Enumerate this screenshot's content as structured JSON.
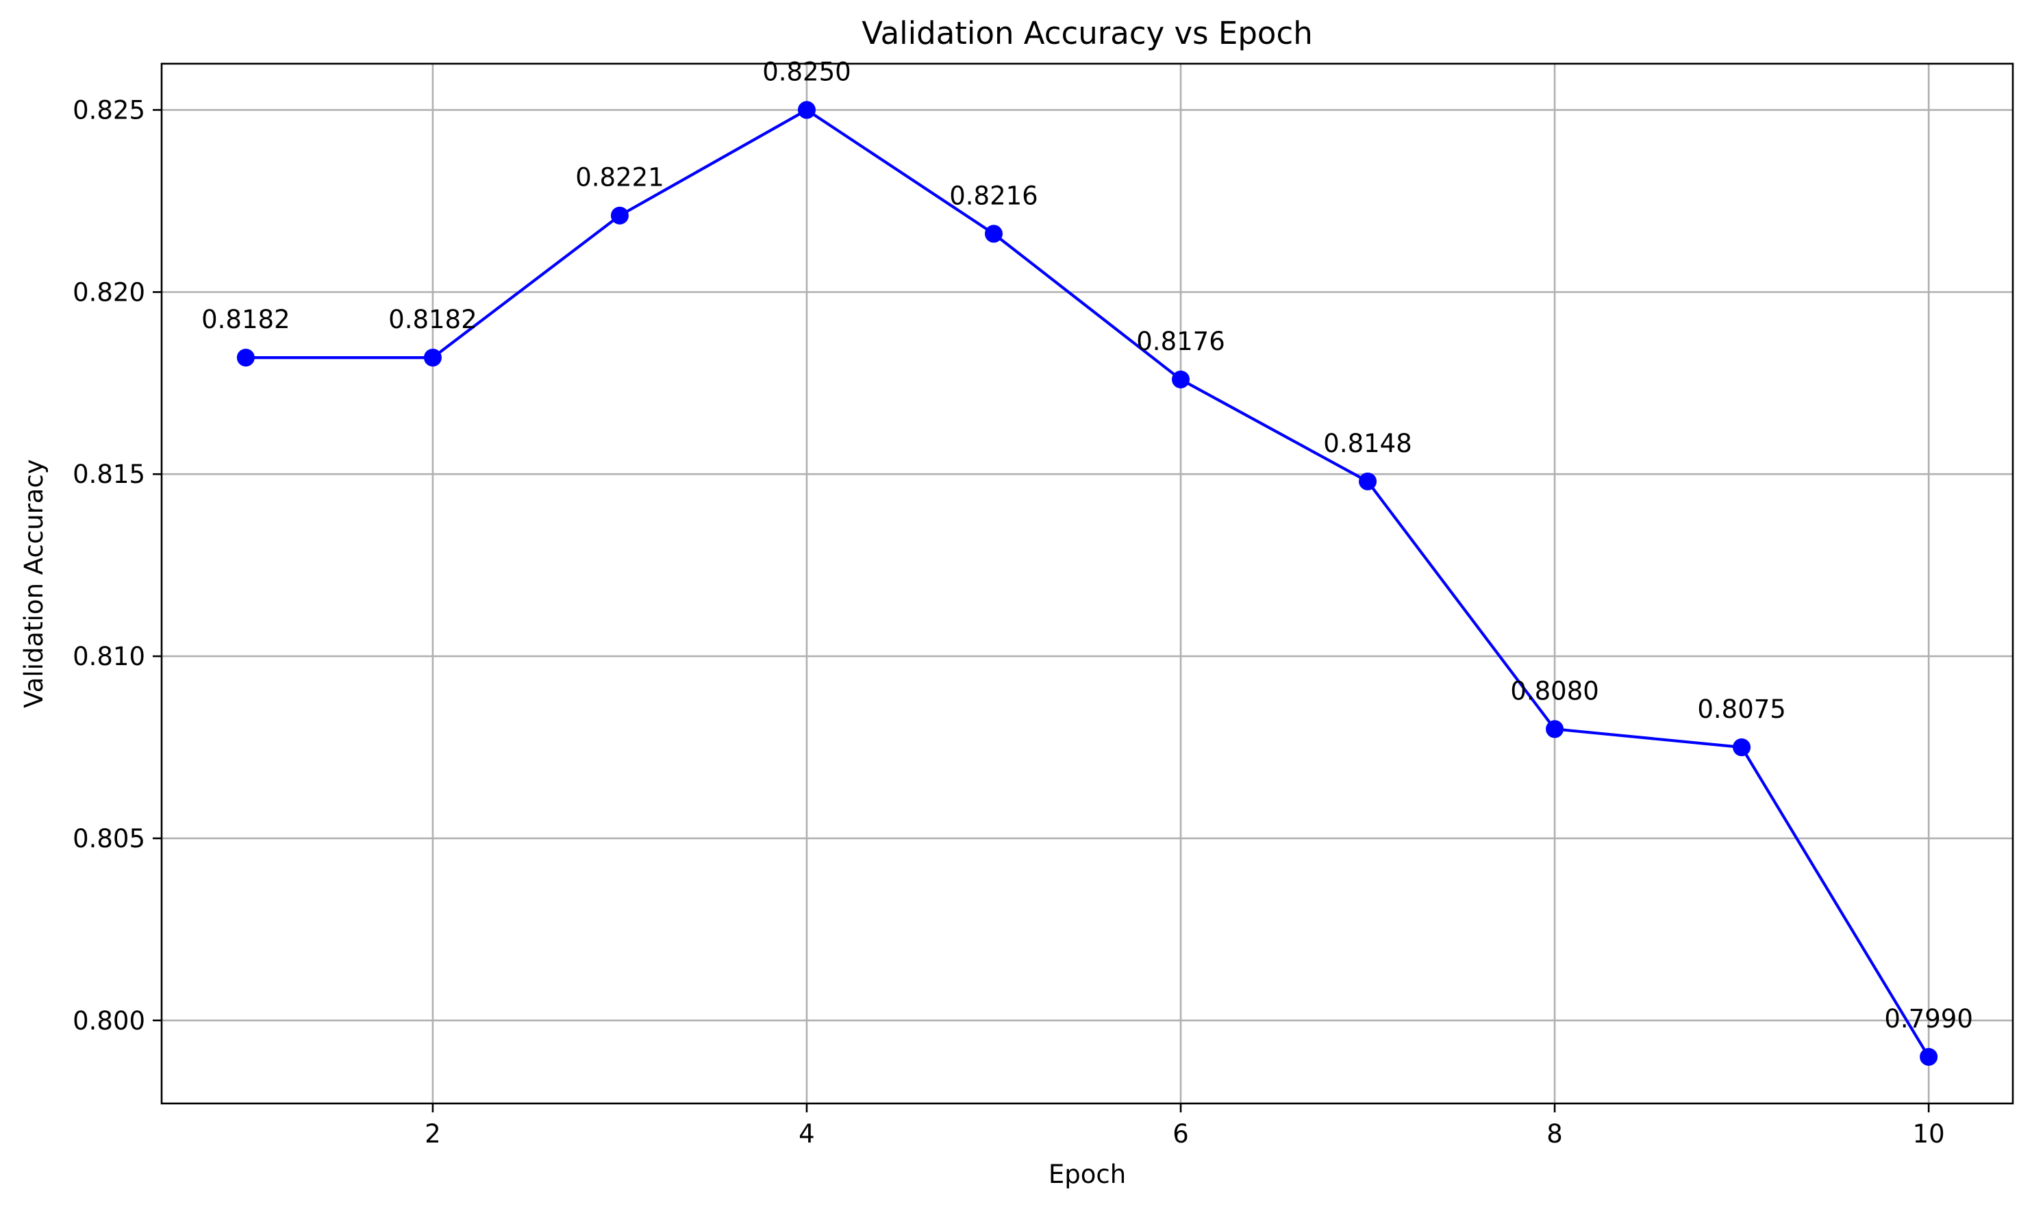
{
  "chart_data": {
    "type": "line",
    "title": "Validation Accuracy vs Epoch",
    "xlabel": "Epoch",
    "ylabel": "Validation Accuracy",
    "x": [
      1,
      2,
      3,
      4,
      5,
      6,
      7,
      8,
      9,
      10
    ],
    "series": [
      {
        "values": [
          0.8182,
          0.8182,
          0.8221,
          0.825,
          0.8216,
          0.8176,
          0.8148,
          0.808,
          0.8075,
          0.799
        ],
        "data_labels": [
          "0.8182",
          "0.8182",
          "0.8221",
          "0.8250",
          "0.8216",
          "0.8176",
          "0.8148",
          "0.8080",
          "0.8075",
          "0.7990"
        ],
        "color": "#0000ff",
        "marker": "circle"
      }
    ],
    "xlim": [
      0.55,
      10.45
    ],
    "ylim": [
      0.79772,
      0.82627
    ],
    "xticks": [
      2,
      4,
      6,
      8,
      10
    ],
    "xtick_labels": [
      "2",
      "4",
      "6",
      "8",
      "10"
    ],
    "yticks": [
      0.8,
      0.805,
      0.81,
      0.815,
      0.82,
      0.825
    ],
    "ytick_labels": [
      "0.800",
      "0.805",
      "0.810",
      "0.815",
      "0.820",
      "0.825"
    ],
    "grid": true,
    "legend": "none"
  }
}
